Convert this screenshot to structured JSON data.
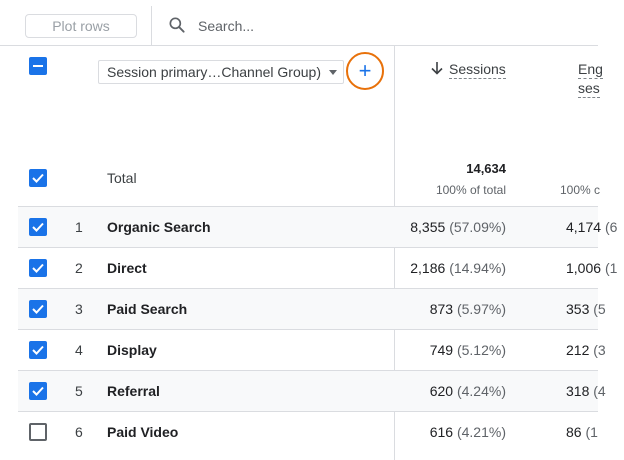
{
  "toolbar": {
    "plot_rows_label": "Plot rows",
    "search_placeholder": "Search..."
  },
  "header": {
    "dimension_select_label": "Session primary…Channel Group)",
    "add_dimension_label": "+",
    "metrics": [
      {
        "line1": "Sessions",
        "line2": ""
      },
      {
        "line1": "Eng",
        "line2": "ses"
      }
    ]
  },
  "total": {
    "label": "Total",
    "sessions": "14,634",
    "sessions_sub": "100% of total",
    "second_sub": "100% c"
  },
  "rows": [
    {
      "num": "1",
      "label": "Organic Search",
      "sessions": "8,355",
      "sessions_pct": "(57.09%)",
      "second": "4,174",
      "second_pct": "(6",
      "checked": true,
      "shaded": true
    },
    {
      "num": "2",
      "label": "Direct",
      "sessions": "2,186",
      "sessions_pct": "(14.94%)",
      "second": "1,006",
      "second_pct": "(1",
      "checked": true,
      "shaded": false
    },
    {
      "num": "3",
      "label": "Paid Search",
      "sessions": "873",
      "sessions_pct": "(5.97%)",
      "second": "353",
      "second_pct": "(5",
      "checked": true,
      "shaded": true
    },
    {
      "num": "4",
      "label": "Display",
      "sessions": "749",
      "sessions_pct": "(5.12%)",
      "second": "212",
      "second_pct": "(3",
      "checked": true,
      "shaded": false
    },
    {
      "num": "5",
      "label": "Referral",
      "sessions": "620",
      "sessions_pct": "(4.24%)",
      "second": "318",
      "second_pct": "(4",
      "checked": true,
      "shaded": true
    },
    {
      "num": "6",
      "label": "Paid Video",
      "sessions": "616",
      "sessions_pct": "(4.21%)",
      "second": "86",
      "second_pct": "(1",
      "checked": false,
      "shaded": false
    }
  ],
  "colors": {
    "accent": "#1a73e8",
    "highlight_ring": "#e8710a",
    "divider": "#dadce0"
  },
  "icons": {
    "search": "search-icon",
    "sort": "arrow-down-icon",
    "check": "check-icon"
  }
}
